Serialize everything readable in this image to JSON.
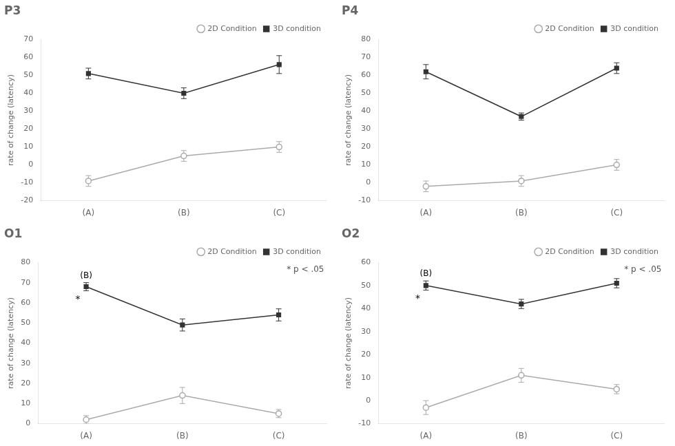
{
  "chart_data": [
    {
      "type": "line",
      "title": "P3",
      "categories": [
        "(A)",
        "(B)",
        "(C)"
      ],
      "ylabel": "rate of change (latency)",
      "ylim": [
        -20,
        70
      ],
      "yticks": [
        -20,
        -10,
        0,
        10,
        20,
        30,
        40,
        50,
        60,
        70
      ],
      "grid": false,
      "legend": "top",
      "series": [
        {
          "name": "2D Condition",
          "color": "#aaaaaa",
          "marker": "circle",
          "values": [
            -9,
            5,
            10
          ],
          "errors": [
            3,
            3,
            3
          ]
        },
        {
          "name": "3D condition",
          "color": "#333333",
          "marker": "square",
          "values": [
            51,
            40,
            56
          ],
          "errors": [
            3,
            3,
            5
          ]
        }
      ]
    },
    {
      "type": "line",
      "title": "P4",
      "categories": [
        "(A)",
        "(B)",
        "(C)"
      ],
      "ylabel": "rate of change (latency)",
      "ylim": [
        -10,
        80
      ],
      "yticks": [
        -10,
        0,
        10,
        20,
        30,
        40,
        50,
        60,
        70,
        80
      ],
      "grid": false,
      "legend": "top",
      "series": [
        {
          "name": "2D Condition",
          "color": "#aaaaaa",
          "marker": "circle",
          "values": [
            -2,
            1,
            10
          ],
          "errors": [
            3,
            3,
            3
          ]
        },
        {
          "name": "3D condition",
          "color": "#333333",
          "marker": "square",
          "values": [
            62,
            37,
            64
          ],
          "errors": [
            4,
            2,
            3
          ]
        }
      ]
    },
    {
      "type": "line",
      "title": "O1",
      "categories": [
        "(A)",
        "(B)",
        "(C)"
      ],
      "ylabel": "rate of change (latency)",
      "ylim": [
        0,
        80
      ],
      "yticks": [
        0,
        10,
        20,
        30,
        40,
        50,
        60,
        70,
        80
      ],
      "grid": false,
      "legend": "top",
      "series": [
        {
          "name": "2D Condition",
          "color": "#aaaaaa",
          "marker": "circle",
          "values": [
            2,
            14,
            5
          ],
          "errors": [
            2,
            4,
            2
          ]
        },
        {
          "name": "3D condition",
          "color": "#333333",
          "marker": "square",
          "values": [
            68,
            49,
            54
          ],
          "errors": [
            2,
            3,
            3
          ]
        }
      ],
      "annotations": [
        {
          "text": "(B)",
          "x": "(A)"
        },
        {
          "text": "*",
          "x": "(A)"
        },
        {
          "text": "* p < .05"
        }
      ]
    },
    {
      "type": "line",
      "title": "O2",
      "categories": [
        "(A)",
        "(B)",
        "(C)"
      ],
      "ylabel": "rate of change (latency)",
      "ylim": [
        -10,
        60
      ],
      "yticks": [
        -10,
        0,
        10,
        20,
        30,
        40,
        50,
        60
      ],
      "grid": false,
      "legend": "top",
      "series": [
        {
          "name": "2D Condition",
          "color": "#aaaaaa",
          "marker": "circle",
          "values": [
            -3,
            11,
            5
          ],
          "errors": [
            3,
            3,
            2
          ]
        },
        {
          "name": "3D condition",
          "color": "#333333",
          "marker": "square",
          "values": [
            50,
            42,
            51
          ],
          "errors": [
            2,
            2,
            2
          ]
        }
      ],
      "annotations": [
        {
          "text": "(B)",
          "x": "(A)"
        },
        {
          "text": "*",
          "x": "(A)"
        },
        {
          "text": "* p < .05"
        }
      ]
    }
  ]
}
